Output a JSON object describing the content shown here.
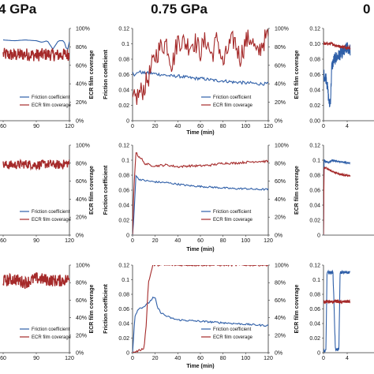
{
  "headers": [
    {
      "text": "4 GPa"
    },
    {
      "text": "0.75 GPa"
    },
    {
      "text": "0"
    }
  ],
  "colors": {
    "friction": "#2f5fa8",
    "ecr": "#a52a2a",
    "axis": "#333333"
  },
  "chart_data": [
    {
      "type": "line",
      "row": 0,
      "col": 0,
      "xlabel": "",
      "ylabel": "",
      "y2label": "ECR film coverage",
      "x_ticks_visible": [
        "60",
        "90",
        "120"
      ],
      "y2_ticks": [
        "0%",
        "20%",
        "40%",
        "60%",
        "80%",
        "100%"
      ],
      "legend": [
        "Friction coefficient",
        "ECR film coverage"
      ],
      "series": [
        {
          "name": "Friction coefficient",
          "axis": "left",
          "x": [
            60,
            70,
            80,
            90,
            95,
            100,
            105,
            110,
            115,
            118,
            120
          ],
          "y": [
            0.105,
            0.104,
            0.105,
            0.104,
            0.102,
            0.104,
            0.093,
            0.104,
            0.104,
            0.09,
            0.103
          ]
        },
        {
          "name": "ECR film coverage",
          "axis": "right",
          "x": [
            60,
            70,
            80,
            90,
            100,
            110,
            120
          ],
          "y": [
            72,
            71,
            72,
            71,
            72,
            71,
            72
          ],
          "noise": 7
        }
      ]
    },
    {
      "type": "line",
      "row": 0,
      "col": 1,
      "xlabel": "Time (min)",
      "ylabel": "Friction coefficient",
      "y2label": "ECR film coverage",
      "x_ticks": [
        "0",
        "20",
        "40",
        "60",
        "80",
        "100",
        "120"
      ],
      "y_ticks": [
        "0",
        "0.02",
        "0.04",
        "0.06",
        "0.08",
        "0.1",
        "0.12"
      ],
      "y2_ticks": [
        "0%",
        "20%",
        "40%",
        "60%",
        "80%",
        "100%"
      ],
      "ylim": [
        0,
        0.12
      ],
      "xlim": [
        0,
        120
      ],
      "legend": [
        "Friction coefficient",
        "ECR film coverage"
      ],
      "series": [
        {
          "name": "Friction coefficient",
          "axis": "left",
          "x": [
            0,
            2,
            5,
            10,
            15,
            20,
            25,
            30,
            35,
            40,
            45,
            50,
            55,
            60,
            65,
            70,
            75,
            80,
            85,
            90,
            95,
            100,
            105,
            110,
            115,
            120
          ],
          "y": [
            0.065,
            0.058,
            0.064,
            0.062,
            0.062,
            0.061,
            0.06,
            0.059,
            0.058,
            0.058,
            0.057,
            0.056,
            0.055,
            0.055,
            0.054,
            0.053,
            0.052,
            0.052,
            0.051,
            0.05,
            0.05,
            0.049,
            0.049,
            0.048,
            0.048,
            0.048
          ],
          "noise": 0.002
        },
        {
          "name": "ECR film coverage",
          "axis": "right",
          "x": [
            0,
            5,
            10,
            15,
            20,
            25,
            30,
            35,
            40,
            45,
            50,
            55,
            60,
            65,
            70,
            75,
            80,
            85,
            90,
            95,
            100,
            105,
            110,
            115,
            120
          ],
          "y": [
            20,
            28,
            35,
            50,
            70,
            80,
            85,
            60,
            88,
            85,
            82,
            86,
            75,
            88,
            70,
            90,
            60,
            80,
            88,
            68,
            86,
            90,
            70,
            85,
            92
          ],
          "noise": 12
        }
      ]
    },
    {
      "type": "line",
      "row": 0,
      "col": 2,
      "xlabel": "",
      "ylabel": "",
      "y2label": "",
      "x_ticks_visible": [
        "0",
        "4"
      ],
      "y_ticks": [
        "0.00",
        "0.02",
        "0.04",
        "0.06",
        "0.08",
        "0.10",
        "0.12"
      ],
      "ylim": [
        0,
        0.12
      ],
      "series": [
        {
          "name": "Friction coefficient",
          "axis": "left",
          "x": [
            0,
            5,
            10,
            12,
            14,
            18,
            22,
            26,
            30,
            35,
            40,
            45
          ],
          "y": [
            0.06,
            0.055,
            0.02,
            0.03,
            0.07,
            0.08,
            0.082,
            0.085,
            0.088,
            0.09,
            0.095,
            0.092
          ],
          "noise": 0.008
        },
        {
          "name": "ECR film coverage",
          "axis": "left",
          "x": [
            0,
            10,
            15,
            20,
            25,
            30,
            35,
            40,
            45
          ],
          "y": [
            0.1,
            0.1,
            0.1,
            0.098,
            0.097,
            0.096,
            0.096,
            0.095,
            0.095
          ],
          "noise": 0.002
        }
      ]
    },
    {
      "type": "line",
      "row": 1,
      "col": 0,
      "xlabel": "",
      "ylabel": "",
      "y2label": "ECR film coverage",
      "x_ticks_visible": [
        "60",
        "90",
        "120"
      ],
      "y2_ticks": [
        "0%",
        "20%",
        "40%",
        "60%",
        "80%",
        "100%"
      ],
      "legend": [
        "Friction coefficient",
        "ECR film coverage"
      ],
      "series": [
        {
          "name": "ECR film coverage",
          "axis": "right",
          "x": [
            60,
            70,
            80,
            90,
            100,
            110,
            120
          ],
          "y": [
            78,
            78,
            79,
            78,
            79,
            78,
            80
          ],
          "noise": 5
        }
      ]
    },
    {
      "type": "line",
      "row": 1,
      "col": 1,
      "xlabel": "Time (min)",
      "ylabel": "Friction coefficient",
      "y2label": "ECR film coverage",
      "x_ticks": [
        "0",
        "20",
        "40",
        "60",
        "80",
        "100",
        "120"
      ],
      "y_ticks": [
        "0",
        "0.02",
        "0.04",
        "0.06",
        "0.08",
        "0.1",
        "0.12"
      ],
      "y2_ticks": [
        "0%",
        "20%",
        "40%",
        "60%",
        "80%",
        "100%"
      ],
      "ylim": [
        0,
        0.12
      ],
      "xlim": [
        0,
        120
      ],
      "legend": [
        "Friction coefficient",
        "ECR film coverage"
      ],
      "series": [
        {
          "name": "Friction coefficient",
          "axis": "left",
          "x": [
            0,
            1,
            3,
            5,
            10,
            20,
            30,
            40,
            50,
            60,
            70,
            80,
            90,
            100,
            110,
            120
          ],
          "y": [
            0.0,
            0.02,
            0.08,
            0.075,
            0.073,
            0.071,
            0.07,
            0.068,
            0.066,
            0.065,
            0.064,
            0.063,
            0.062,
            0.062,
            0.061,
            0.061
          ],
          "noise": 0.0012
        },
        {
          "name": "ECR film coverage",
          "axis": "right",
          "x": [
            0,
            1,
            3,
            5,
            8,
            10,
            15,
            20,
            30,
            40,
            50,
            60,
            70,
            75,
            80,
            90,
            100,
            110,
            120
          ],
          "y": [
            0,
            50,
            92,
            88,
            85,
            80,
            78,
            77,
            78,
            76,
            77,
            77,
            78,
            79,
            80,
            80,
            81,
            82,
            82
          ],
          "noise": 1.2
        }
      ]
    },
    {
      "type": "line",
      "row": 1,
      "col": 2,
      "xlabel": "",
      "ylabel": "",
      "y2label": "",
      "y_ticks": [
        "0",
        "0.02",
        "0.04",
        "0.06",
        "0.08",
        "0.1",
        "0.12"
      ],
      "ylim": [
        0,
        0.12
      ],
      "series": [
        {
          "name": "Friction coefficient",
          "axis": "left",
          "x": [
            0,
            1,
            3,
            8,
            15,
            25,
            35,
            45
          ],
          "y": [
            0.0,
            0.1,
            0.098,
            0.097,
            0.1,
            0.098,
            0.097,
            0.096
          ],
          "noise": 0.001
        },
        {
          "name": "ECR film coverage",
          "axis": "left",
          "x": [
            0,
            1,
            3,
            8,
            15,
            25,
            35,
            45
          ],
          "y": [
            0.0,
            0.09,
            0.09,
            0.088,
            0.085,
            0.082,
            0.08,
            0.079
          ],
          "noise": 0.001
        }
      ]
    },
    {
      "type": "line",
      "row": 2,
      "col": 0,
      "xlabel": "",
      "ylabel": "",
      "y2label": "ECR film coverage",
      "x_ticks_visible": [
        "60",
        "90",
        "120"
      ],
      "y2_ticks": [
        "0%",
        "20%",
        "40%",
        "60%",
        "80%",
        "100%"
      ],
      "legend": [
        "Friction coefficient",
        "ECR film coverage"
      ],
      "series": [
        {
          "name": "ECR film coverage",
          "axis": "right",
          "x": [
            60,
            70,
            80,
            90,
            100,
            110,
            120
          ],
          "y": [
            82,
            84,
            80,
            85,
            83,
            82,
            84
          ],
          "noise": 7
        }
      ]
    },
    {
      "type": "line",
      "row": 2,
      "col": 1,
      "xlabel": "Time (min)",
      "ylabel": "Friction coefficient",
      "y2label": "ECR film coverage",
      "x_ticks": [
        "0",
        "20",
        "40",
        "60",
        "80",
        "100",
        "120"
      ],
      "y_ticks": [
        "0",
        "0.02",
        "0.04",
        "0.06",
        "0.08",
        "0.1",
        "0.12"
      ],
      "y2_ticks": [
        "0%",
        "20%",
        "40%",
        "60%",
        "80%",
        "100%"
      ],
      "ylim": [
        0,
        0.12
      ],
      "xlim": [
        0,
        120
      ],
      "legend": [
        "Friction coefficient",
        "ECR film coverage"
      ],
      "series": [
        {
          "name": "Friction coefficient",
          "axis": "left",
          "x": [
            0,
            2,
            5,
            10,
            14,
            18,
            20,
            22,
            25,
            30,
            35,
            40,
            50,
            60,
            70,
            80,
            90,
            100,
            110,
            120
          ],
          "y": [
            0.0,
            0.05,
            0.06,
            0.063,
            0.068,
            0.075,
            0.075,
            0.062,
            0.055,
            0.05,
            0.047,
            0.045,
            0.044,
            0.043,
            0.042,
            0.041,
            0.04,
            0.039,
            0.038,
            0.037
          ],
          "noise": 0.0012
        },
        {
          "name": "ECR film coverage",
          "axis": "right",
          "x": [
            0,
            5,
            10,
            12,
            14,
            17,
            18,
            22,
            30,
            40,
            60,
            80,
            100,
            120
          ],
          "y": [
            0,
            2,
            5,
            30,
            80,
            95,
            100,
            100,
            100,
            100,
            100,
            100,
            100,
            100
          ],
          "noise": 1
        }
      ]
    },
    {
      "type": "line",
      "row": 2,
      "col": 2,
      "xlabel": "",
      "ylabel": "",
      "y2label": "",
      "x_ticks_visible": [
        "0",
        "4"
      ],
      "y_ticks": [
        "0",
        "0.02",
        "0.04",
        "0.06",
        "0.08",
        "0.1",
        "0.12"
      ],
      "ylim": [
        0,
        0.12
      ],
      "series": [
        {
          "name": "Friction coefficient",
          "axis": "left",
          "x": [
            0,
            2,
            4,
            6,
            8,
            10,
            12,
            14,
            16,
            18,
            20,
            24,
            26,
            28,
            30,
            32,
            34,
            36,
            38,
            40,
            45
          ],
          "y": [
            0.002,
            0.002,
            0.003,
            0.11,
            0.11,
            0.11,
            0.11,
            0.11,
            0.11,
            0.06,
            0.005,
            0.004,
            0.004,
            0.11,
            0.11,
            0.11,
            0.11,
            0.11,
            0.11,
            0.11,
            0.11
          ],
          "noise": 0.002
        },
        {
          "name": "ECR film coverage",
          "axis": "left",
          "x": [
            0,
            5,
            10,
            15,
            20,
            25,
            30,
            35,
            40,
            45
          ],
          "y": [
            0.07,
            0.07,
            0.07,
            0.069,
            0.071,
            0.07,
            0.069,
            0.07,
            0.07,
            0.07
          ],
          "noise": 0.002
        }
      ]
    }
  ]
}
